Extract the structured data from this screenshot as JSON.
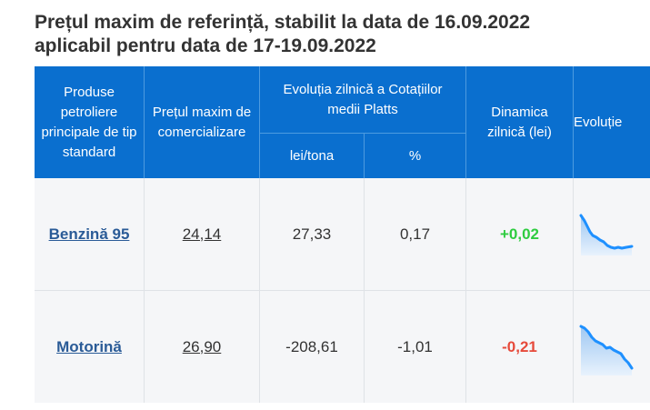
{
  "title_line1": "Prețul maxim de referință, stabilit la data de 16.09.2022",
  "title_line2": "aplicabil pentru data de 17-19.09.2022",
  "headers": {
    "product": "Produse petroliere principale de tip standard",
    "max_price": "Prețul maxim de comercializare",
    "evolution": "Evoluția zilnică a Cotațiilor medii Platts",
    "lei_tona": "lei/tona",
    "percent": "%",
    "dynamics": "Dinamica zilnică (lei)",
    "evolution_chart": "Evoluție"
  },
  "rows": [
    {
      "product": "Benzină 95",
      "price": "24,14",
      "lei_tona": "27,33",
      "percent": "0,17",
      "dynamics": "+0,02",
      "trend": "down"
    },
    {
      "product": "Motorină",
      "price": "26,90",
      "lei_tona": "-208,61",
      "percent": "-1,01",
      "dynamics": "-0,21",
      "trend": "down"
    }
  ],
  "colors": {
    "header_bg": "#0a6fcf",
    "positive": "#2ecc40",
    "negative": "#e64a3b",
    "link": "#2a5b97",
    "sparkline": "#1e90ff"
  }
}
